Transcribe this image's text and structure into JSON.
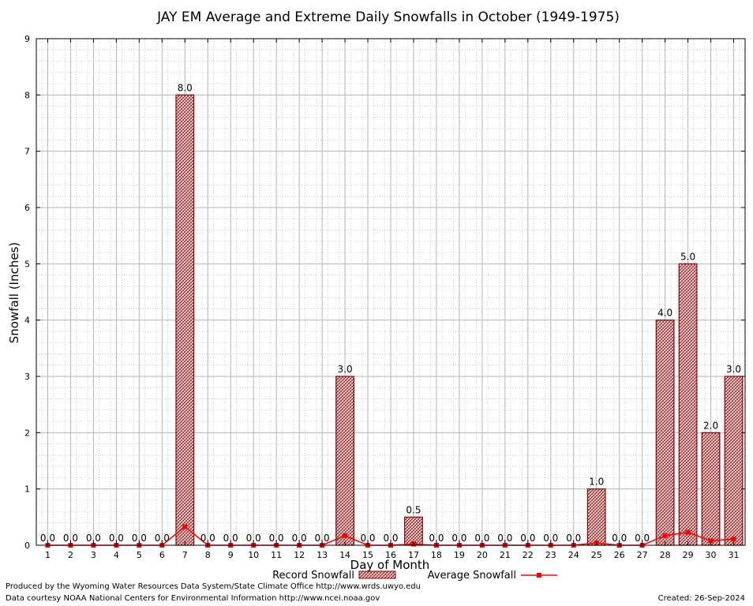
{
  "chart_data": {
    "type": "bar",
    "title": "JAY EM Average and Extreme Daily Snowfalls in October (1949-1975)",
    "xlabel": "Day of Month",
    "ylabel": "Snowfall (Inches)",
    "ylim": [
      0,
      9
    ],
    "yticks": [
      "0",
      "1",
      "2",
      "3",
      "4",
      "5",
      "6",
      "7",
      "8",
      "9"
    ],
    "categories": [
      "1",
      "2",
      "3",
      "4",
      "5",
      "6",
      "7",
      "8",
      "9",
      "10",
      "11",
      "12",
      "13",
      "14",
      "15",
      "16",
      "17",
      "18",
      "19",
      "20",
      "21",
      "22",
      "23",
      "24",
      "25",
      "26",
      "27",
      "28",
      "29",
      "30",
      "31"
    ],
    "series": [
      {
        "name": "Record Snowfall",
        "kind": "bar",
        "color": "#8b0000",
        "values": [
          0,
          0,
          0,
          0,
          0,
          0,
          8.0,
          0,
          0,
          0,
          0,
          0,
          0,
          3.0,
          0,
          0,
          0.5,
          0,
          0,
          0,
          0,
          0,
          0,
          0,
          1.0,
          0,
          0,
          4.0,
          5.0,
          2.0,
          3.0
        ],
        "labels": [
          "0.0",
          "0.0",
          "0.0",
          "0.0",
          "0.0",
          "0.0",
          "8.0",
          "0.0",
          "0.0",
          "0.0",
          "0.0",
          "0.0",
          "0.0",
          "3.0",
          "0.0",
          "0.0",
          "0.5",
          "0.0",
          "0.0",
          "0.0",
          "0.0",
          "0.0",
          "0.0",
          "0.0",
          "1.0",
          "0.0",
          "0.0",
          "4.0",
          "5.0",
          "2.0",
          "3.0"
        ]
      },
      {
        "name": "Average Snowfall",
        "kind": "line",
        "color": "#ff0000",
        "values": [
          0,
          0,
          0,
          0,
          0,
          0,
          0.33,
          0,
          0,
          0,
          0,
          0,
          0,
          0.17,
          0,
          0,
          0.02,
          0,
          0,
          0,
          0,
          0,
          0,
          0,
          0.04,
          0,
          0,
          0.17,
          0.23,
          0.08,
          0.11
        ]
      }
    ],
    "grid": true,
    "legend": "bottom-center"
  },
  "footer": {
    "line1": "Produced by the Wyoming Water Resources Data System/State Climate Office http://www.wrds.uwyo.edu",
    "line2": "Data courtesy NOAA National Centers for Environmental Information http://www.ncei.noaa.gov",
    "created": "Created:  26-Sep-2024"
  }
}
